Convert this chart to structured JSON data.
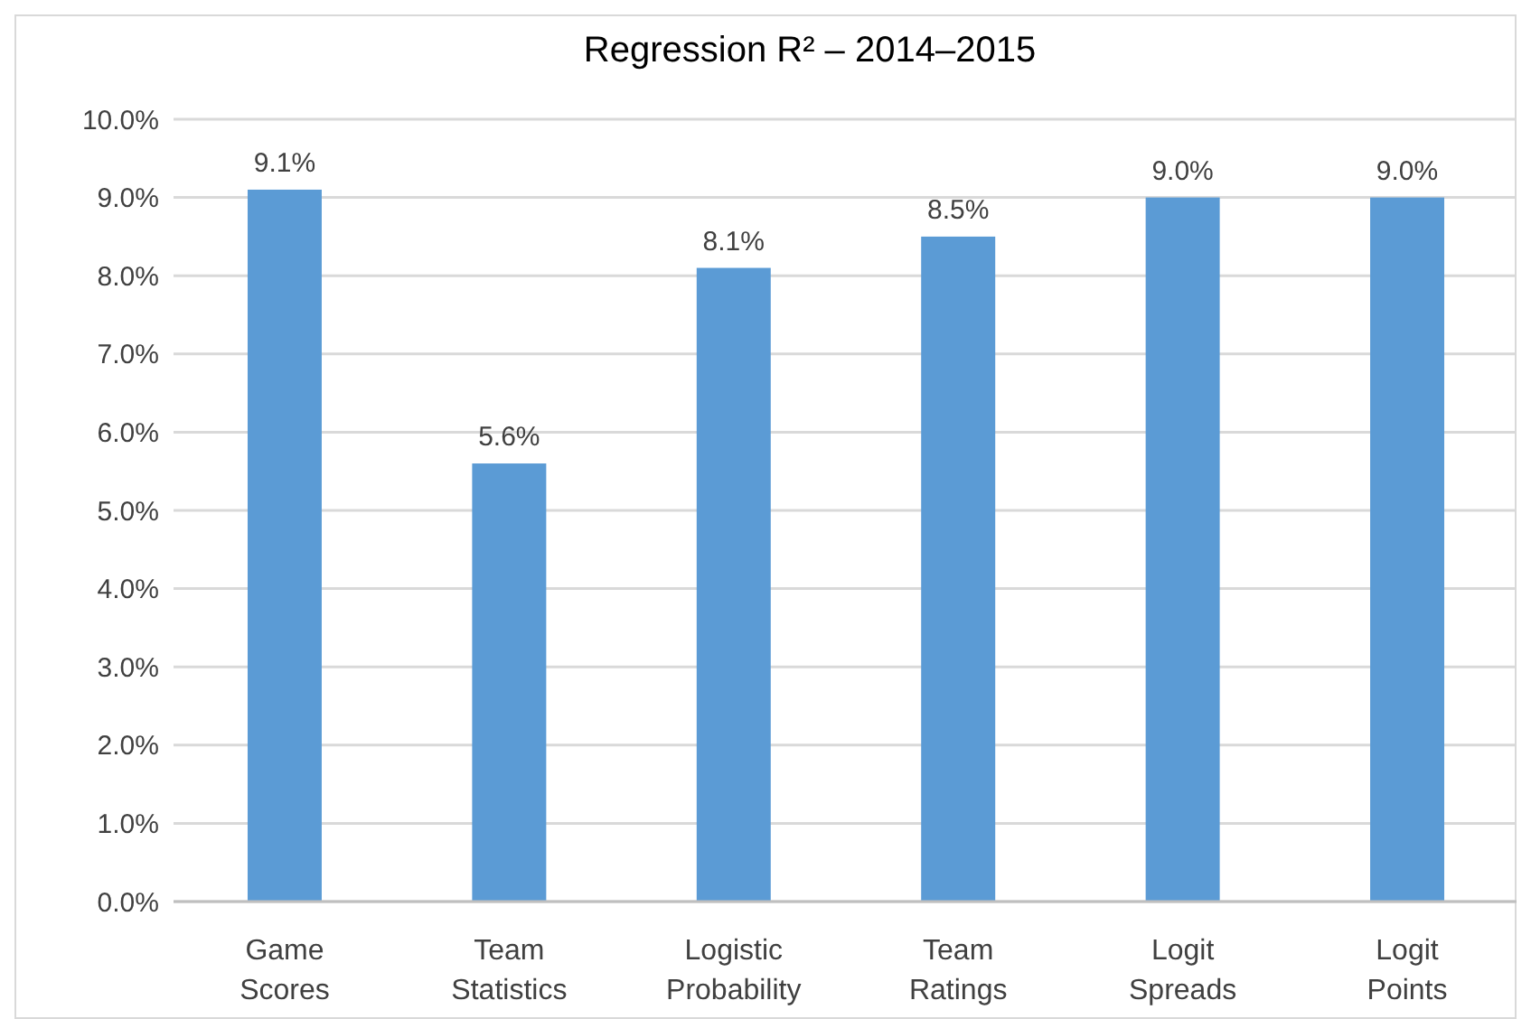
{
  "chart_data": {
    "type": "bar",
    "title": "Regression R² – 2014–2015",
    "categories": [
      "Game Scores",
      "Team Statistics",
      "Logistic Probability",
      "Team Ratings",
      "Logit Spreads",
      "Logit Points"
    ],
    "values": [
      9.1,
      5.6,
      8.1,
      8.5,
      9.0,
      9.0
    ],
    "value_labels": [
      "9.1%",
      "5.6%",
      "8.1%",
      "8.5%",
      "9.0%",
      "9.0%"
    ],
    "color": "#5b9bd5",
    "ylim": [
      0,
      10
    ],
    "yticks": [
      {
        "value": 0,
        "label": "0.0%"
      },
      {
        "value": 1,
        "label": "1.0%"
      },
      {
        "value": 2,
        "label": "2.0%"
      },
      {
        "value": 3,
        "label": "3.0%"
      },
      {
        "value": 4,
        "label": "4.0%"
      },
      {
        "value": 5,
        "label": "5.0%"
      },
      {
        "value": 6,
        "label": "6.0%"
      },
      {
        "value": 7,
        "label": "7.0%"
      },
      {
        "value": 8,
        "label": "8.0%"
      },
      {
        "value": 9,
        "label": "9.0%"
      },
      {
        "value": 10,
        "label": "10.0%"
      }
    ],
    "grid": "y"
  }
}
